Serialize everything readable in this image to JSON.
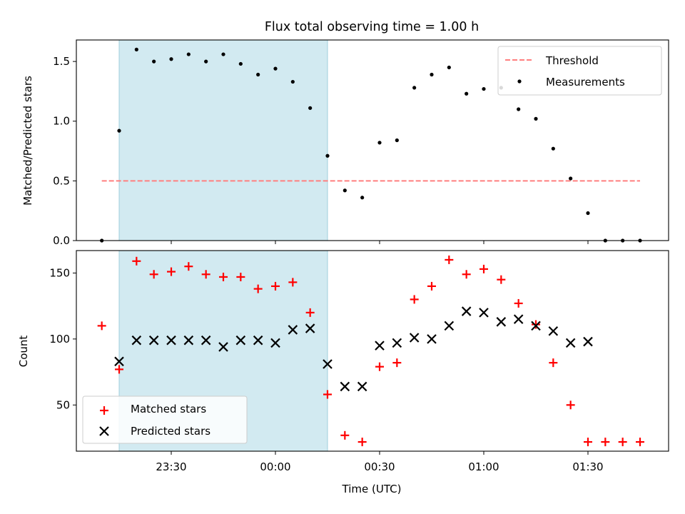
{
  "title": "Flux total observing time = 1.00 h",
  "xlabel": "Time (UTC)",
  "x_ticks": [
    "23:30",
    "00:00",
    "00:30",
    "01:00",
    "01:30"
  ],
  "top_panel": {
    "ylabel": "Matched/Predicted stars",
    "y_ticks": [
      "0.0",
      "0.5",
      "1.0",
      "1.5"
    ],
    "legend": {
      "threshold": "Threshold",
      "measurements": "Measurements"
    }
  },
  "bottom_panel": {
    "ylabel": "Count",
    "y_ticks": [
      "50",
      "100",
      "150"
    ],
    "legend": {
      "matched": "Matched stars",
      "predicted": "Predicted stars"
    }
  },
  "colors": {
    "shade": "#add8e6",
    "threshold": "#ff7f7f",
    "measurements": "#000000",
    "matched": "#ff0000",
    "predicted": "#000000"
  },
  "chart_data": [
    {
      "type": "scatter",
      "title": "Flux total observing time = 1.00 h",
      "xlabel": "",
      "ylabel": "Matched/Predicted stars",
      "ylim": [
        0,
        1.68
      ],
      "shaded_interval": [
        "23:15",
        "00:15"
      ],
      "threshold": 0.5,
      "x": [
        "23:10",
        "23:15",
        "23:20",
        "23:25",
        "23:30",
        "23:35",
        "23:40",
        "23:45",
        "23:50",
        "23:55",
        "00:00",
        "00:05",
        "00:10",
        "00:15",
        "00:20",
        "00:25",
        "00:30",
        "00:35",
        "00:40",
        "00:45",
        "00:50",
        "00:55",
        "01:00",
        "01:05",
        "01:10",
        "01:15",
        "01:20",
        "01:25",
        "01:30",
        "01:35",
        "01:40",
        "01:45"
      ],
      "series": [
        {
          "name": "Measurements",
          "values": [
            0.0,
            0.92,
            1.6,
            1.5,
            1.52,
            1.56,
            1.5,
            1.56,
            1.48,
            1.39,
            1.44,
            1.33,
            1.11,
            0.71,
            0.42,
            0.36,
            0.82,
            0.84,
            1.28,
            1.39,
            1.45,
            1.23,
            1.27,
            1.28,
            1.1,
            1.02,
            0.77,
            0.52,
            0.23,
            0.0,
            0.0,
            0.0
          ]
        },
        {
          "name": "Threshold",
          "values": [
            0.5,
            0.5
          ]
        }
      ],
      "legend": "top-right"
    },
    {
      "type": "scatter",
      "xlabel": "Time (UTC)",
      "ylabel": "Count",
      "ylim": [
        15,
        167
      ],
      "shaded_interval": [
        "23:15",
        "00:15"
      ],
      "x": [
        "23:10",
        "23:15",
        "23:20",
        "23:25",
        "23:30",
        "23:35",
        "23:40",
        "23:45",
        "23:50",
        "23:55",
        "00:00",
        "00:05",
        "00:10",
        "00:15",
        "00:20",
        "00:25",
        "00:30",
        "00:35",
        "00:40",
        "00:45",
        "00:50",
        "00:55",
        "01:00",
        "01:05",
        "01:10",
        "01:15",
        "01:20",
        "01:25",
        "01:30",
        "01:35",
        "01:40",
        "01:45"
      ],
      "series": [
        {
          "name": "Matched stars",
          "values": [
            110,
            77,
            159,
            149,
            151,
            155,
            149,
            147,
            147,
            138,
            140,
            143,
            120,
            58,
            27,
            22,
            79,
            82,
            130,
            140,
            160,
            149,
            153,
            145,
            127,
            111,
            82,
            50,
            22,
            22,
            22,
            22
          ]
        },
        {
          "name": "Predicted stars",
          "values": [
            null,
            83,
            99,
            99,
            99,
            99,
            99,
            94,
            99,
            99,
            97,
            107,
            108,
            81,
            64,
            64,
            95,
            97,
            101,
            100,
            110,
            121,
            120,
            113,
            115,
            110,
            106,
            97,
            98,
            null,
            null,
            null
          ]
        }
      ],
      "legend": "bottom-left"
    }
  ]
}
